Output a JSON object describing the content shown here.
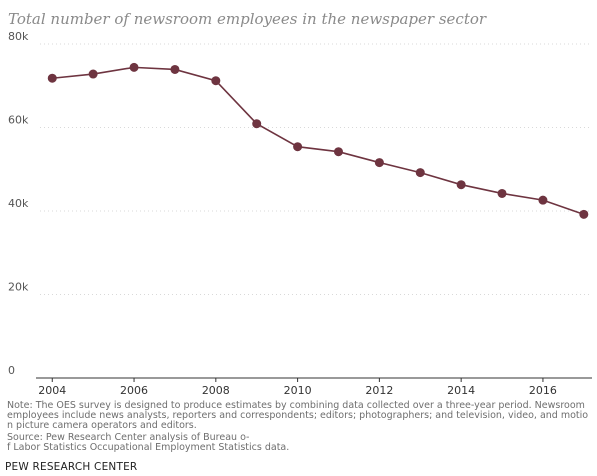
{
  "chart_data": {
    "type": "line",
    "title": "Total number of newsroom employees in the newspaper sector",
    "x": [
      2004,
      2005,
      2006,
      2007,
      2008,
      2009,
      2010,
      2011,
      2012,
      2013,
      2014,
      2015,
      2016,
      2017
    ],
    "series": [
      {
        "values": [
          71800,
          72800,
          74400,
          73900,
          71200,
          60900,
          55400,
          54200,
          51600,
          49200,
          46300,
          44200,
          42600,
          39200
        ],
        "color": "#6e3440"
      }
    ],
    "xticks": [
      {
        "value": 2004,
        "label": "2004"
      },
      {
        "value": 2006,
        "label": "2006"
      },
      {
        "value": 2008,
        "label": "2008"
      },
      {
        "value": 2010,
        "label": "2010"
      },
      {
        "value": 2012,
        "label": "2012"
      },
      {
        "value": 2014,
        "label": "2014"
      },
      {
        "value": 2016,
        "label": "2016"
      }
    ],
    "yticks": [
      {
        "value": 0,
        "label": "0"
      },
      {
        "value": 20000,
        "label": "20k"
      },
      {
        "value": 40000,
        "label": "40k"
      },
      {
        "value": 60000,
        "label": "60k"
      },
      {
        "value": 80000,
        "label": "80k"
      }
    ],
    "ylim": [
      0,
      80000
    ],
    "xlim": [
      2003.7,
      2017.2
    ],
    "grid": true,
    "legend": "none"
  },
  "footer": {
    "note": "Note: The OES survey is designed to produce estimates by combining data collected over a three-year period. Newsroom employees include news analysts, reporters and correspondents; editors; photographers; and television, video, and motion picture camera operators and editors.",
    "source_line1": " Source: Pew Research Center analysis of Bureau o-",
    "source_line2": "f Labor Statistics Occupational Employment Statistics data.",
    "brand": "PEW RESEARCH CENTER"
  },
  "colors": {
    "line": "#6e3440",
    "grid": "#d9d9d9",
    "axis": "#333333"
  }
}
